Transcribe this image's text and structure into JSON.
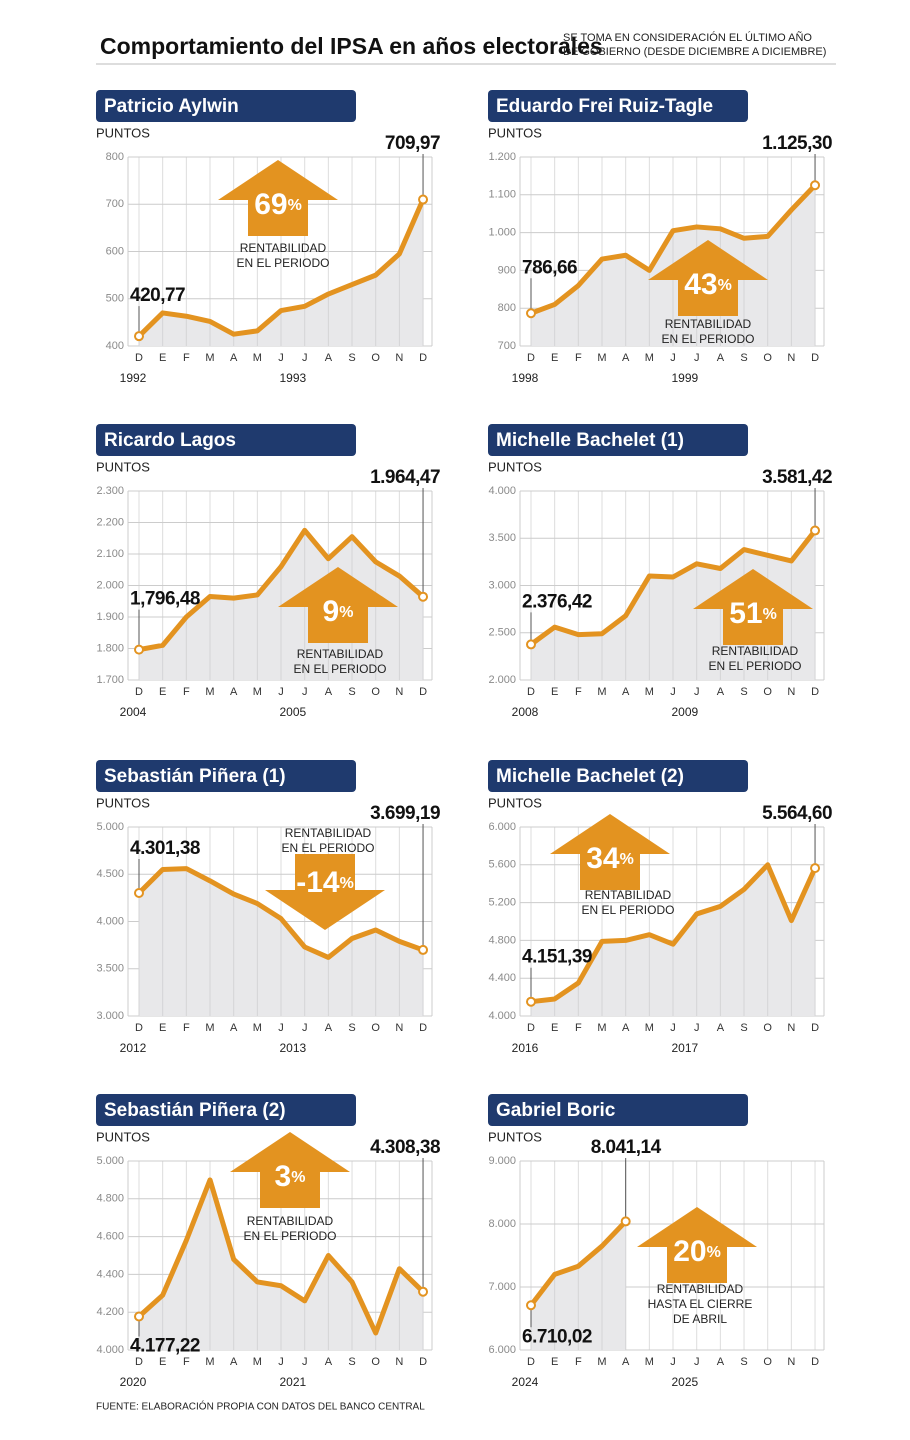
{
  "header": {
    "title": "Comportamiento del IPSA en años electorales",
    "note": [
      "SE TOMA EN CONSIDERACIÓN EL ÚLTIMO AÑO",
      "DE GOBIERNO (DESDE DICIEMBRE A DICIEMBRE)"
    ]
  },
  "chart_data": [
    {
      "type": "line",
      "title": "Patricio Aylwin",
      "ylabel": "PUNTOS",
      "categories": [
        "D",
        "E",
        "F",
        "M",
        "A",
        "M",
        "J",
        "J",
        "A",
        "S",
        "O",
        "N",
        "D"
      ],
      "years": [
        "1992",
        "1993"
      ],
      "values": [
        420.77,
        470,
        463,
        452,
        425,
        432,
        475,
        484,
        510,
        530,
        550,
        595,
        709.97
      ],
      "value_labels": [
        "420,77",
        null,
        null,
        null,
        null,
        null,
        null,
        null,
        null,
        null,
        null,
        null,
        "709,97"
      ],
      "ylim": [
        400,
        800
      ],
      "yticks": [
        400,
        500,
        600,
        700,
        800
      ],
      "return": 69,
      "return_unit": "%",
      "annotation": [
        "RENTABILIDAD",
        "EN EL PERIODO"
      ],
      "grid": true,
      "color": "#e39320"
    },
    {
      "type": "line",
      "title": "Eduardo Frei Ruiz-Tagle",
      "ylabel": "PUNTOS",
      "categories": [
        "D",
        "E",
        "F",
        "M",
        "A",
        "M",
        "J",
        "J",
        "A",
        "S",
        "O",
        "N",
        "D"
      ],
      "years": [
        "1998",
        "1999"
      ],
      "values": [
        786.66,
        810,
        860,
        930,
        940,
        900,
        1005,
        1015,
        1010,
        985,
        990,
        1060,
        1125.3
      ],
      "value_labels": [
        "786,66",
        null,
        null,
        null,
        null,
        null,
        null,
        null,
        null,
        null,
        null,
        null,
        "1.125,30"
      ],
      "ylim": [
        700,
        1200
      ],
      "yticks": [
        700,
        800,
        900,
        {
          "value": 1000,
          "label": "1.000"
        },
        {
          "value": 1100,
          "label": "1.100"
        },
        {
          "value": 1200,
          "label": "1.200"
        }
      ],
      "return": 43,
      "return_unit": "%",
      "annotation": [
        "RENTABILIDAD",
        "EN EL PERIODO"
      ],
      "grid": true,
      "color": "#e39320"
    },
    {
      "type": "line",
      "title": "Ricardo Lagos",
      "ylabel": "PUNTOS",
      "categories": [
        "D",
        "E",
        "F",
        "M",
        "A",
        "M",
        "J",
        "J",
        "A",
        "S",
        "O",
        "N",
        "D"
      ],
      "years": [
        "2004",
        "2005"
      ],
      "values": [
        1796.48,
        1810,
        1900,
        1965,
        1960,
        1970,
        2060,
        2175,
        2085,
        2155,
        2075,
        2030,
        1964.47
      ],
      "value_labels": [
        "1,796,48",
        null,
        null,
        null,
        null,
        null,
        null,
        null,
        null,
        null,
        null,
        null,
        "1.964,47"
      ],
      "ylim": [
        1700,
        2300
      ],
      "yticks": [
        {
          "value": 1700,
          "label": "1.700"
        },
        {
          "value": 1800,
          "label": "1.800"
        },
        {
          "value": 1900,
          "label": "1.900"
        },
        {
          "value": 2000,
          "label": "2.000"
        },
        {
          "value": 2100,
          "label": "2.100"
        },
        {
          "value": 2200,
          "label": "2.200"
        },
        {
          "value": 2300,
          "label": "2.300"
        }
      ],
      "return": 9,
      "return_unit": "%",
      "annotation": [
        "RENTABILIDAD",
        "EN EL PERIODO"
      ],
      "grid": true,
      "color": "#e39320"
    },
    {
      "type": "line",
      "title": "Michelle Bachelet (1)",
      "ylabel": "PUNTOS",
      "categories": [
        "D",
        "E",
        "F",
        "M",
        "A",
        "M",
        "J",
        "J",
        "A",
        "S",
        "O",
        "N",
        "D"
      ],
      "years": [
        "2008",
        "2009"
      ],
      "values": [
        2376.42,
        2560,
        2480,
        2490,
        2680,
        3100,
        3090,
        3230,
        3180,
        3380,
        3320,
        3260,
        3581.42
      ],
      "value_labels": [
        "2.376,42",
        null,
        null,
        null,
        null,
        null,
        null,
        null,
        null,
        null,
        null,
        null,
        "3.581,42"
      ],
      "ylim": [
        2000,
        4000
      ],
      "yticks": [
        {
          "value": 2000,
          "label": "2.000"
        },
        {
          "value": 2500,
          "label": "2.500"
        },
        {
          "value": 3000,
          "label": "3.000"
        },
        {
          "value": 3500,
          "label": "3.500"
        },
        {
          "value": 4000,
          "label": "4.000"
        }
      ],
      "return": 51,
      "return_unit": "%",
      "annotation": [
        "RENTABILIDAD",
        "EN EL PERIODO"
      ],
      "grid": true,
      "color": "#e39320"
    },
    {
      "type": "line",
      "title": "Sebastián Piñera (1)",
      "ylabel": "PUNTOS",
      "categories": [
        "D",
        "E",
        "F",
        "M",
        "A",
        "M",
        "J",
        "J",
        "A",
        "S",
        "O",
        "N",
        "D"
      ],
      "years": [
        "2012",
        "2013"
      ],
      "values": [
        4301.38,
        4550,
        4560,
        4430,
        4290,
        4190,
        4030,
        3730,
        3620,
        3820,
        3910,
        3790,
        3699.19
      ],
      "value_labels": [
        "4.301,38",
        null,
        null,
        null,
        null,
        null,
        null,
        null,
        null,
        null,
        null,
        null,
        "3.699,19"
      ],
      "ylim": [
        3000,
        5000
      ],
      "yticks": [
        {
          "value": 3000,
          "label": "3.000"
        },
        {
          "value": 3500,
          "label": "3.500"
        },
        {
          "value": 4000,
          "label": "4.000"
        },
        {
          "value": 4500,
          "label": "4.500"
        },
        {
          "value": 5000,
          "label": "5.000"
        }
      ],
      "return": -14,
      "return_unit": "%",
      "annotation": [
        "RENTABILIDAD",
        "EN EL PERIODO"
      ],
      "grid": true,
      "color": "#e39320"
    },
    {
      "type": "line",
      "title": "Michelle Bachelet (2)",
      "ylabel": "PUNTOS",
      "categories": [
        "D",
        "E",
        "F",
        "M",
        "A",
        "M",
        "J",
        "J",
        "A",
        "S",
        "O",
        "N",
        "D"
      ],
      "years": [
        "2016",
        "2017"
      ],
      "values": [
        4151.39,
        4180,
        4350,
        4790,
        4800,
        4860,
        4760,
        5080,
        5160,
        5340,
        5600,
        5010,
        5564.6
      ],
      "value_labels": [
        "4.151,39",
        null,
        null,
        null,
        null,
        null,
        null,
        null,
        null,
        null,
        null,
        null,
        "5.564,60"
      ],
      "ylim": [
        4000,
        6000
      ],
      "yticks": [
        {
          "value": 4000,
          "label": "4.000"
        },
        {
          "value": 4400,
          "label": "4.400"
        },
        {
          "value": 4800,
          "label": "4.800"
        },
        {
          "value": 5200,
          "label": "5.200"
        },
        {
          "value": 5600,
          "label": "5.600"
        },
        {
          "value": 6000,
          "label": "6.000"
        }
      ],
      "return": 34,
      "return_unit": "%",
      "annotation": [
        "RENTABILIDAD",
        "EN EL PERIODO"
      ],
      "grid": true,
      "color": "#e39320"
    },
    {
      "type": "line",
      "title": "Sebastián Piñera (2)",
      "ylabel": "PUNTOS",
      "categories": [
        "D",
        "E",
        "F",
        "M",
        "A",
        "M",
        "J",
        "J",
        "A",
        "S",
        "O",
        "N",
        "D"
      ],
      "years": [
        "2020",
        "2021"
      ],
      "values": [
        4177.22,
        4290,
        4580,
        4900,
        4480,
        4360,
        4340,
        4260,
        4500,
        4360,
        4090,
        4430,
        4308.38
      ],
      "value_labels": [
        "4.177,22",
        null,
        null,
        null,
        null,
        null,
        null,
        null,
        null,
        null,
        null,
        null,
        "4.308,38"
      ],
      "ylim": [
        4000,
        5000
      ],
      "yticks": [
        {
          "value": 4000,
          "label": "4.000"
        },
        {
          "value": 4200,
          "label": "4.200"
        },
        {
          "value": 4400,
          "label": "4.400"
        },
        {
          "value": 4600,
          "label": "4.600"
        },
        {
          "value": 4800,
          "label": "4.800"
        },
        {
          "value": 5000,
          "label": "5.000"
        }
      ],
      "return": 3,
      "return_unit": "%",
      "annotation": [
        "RENTABILIDAD",
        "EN EL PERIODO"
      ],
      "grid": true,
      "color": "#e39320"
    },
    {
      "type": "line",
      "title": "Gabriel Boric",
      "ylabel": "PUNTOS",
      "categories": [
        "D",
        "E",
        "F",
        "M",
        "A",
        "M",
        "J",
        "J",
        "A",
        "S",
        "O",
        "N",
        "D"
      ],
      "years": [
        "2024",
        "2025"
      ],
      "values": [
        6710.02,
        7200,
        7330,
        7650,
        8041.14,
        null,
        null,
        null,
        null,
        null,
        null,
        null,
        null
      ],
      "value_labels": [
        "6.710,02",
        null,
        null,
        null,
        "8.041,14",
        null,
        null,
        null,
        null,
        null,
        null,
        null,
        null
      ],
      "ylim": [
        6000,
        9000
      ],
      "yticks": [
        {
          "value": 6000,
          "label": "6.000"
        },
        {
          "value": 7000,
          "label": "7.000"
        },
        {
          "value": 8000,
          "label": "8.000"
        },
        {
          "value": 9000,
          "label": "9.000"
        }
      ],
      "return": 20,
      "return_unit": "%",
      "annotation": [
        "RENTABILIDAD",
        "HASTA EL CIERRE",
        "DE ABRIL"
      ],
      "grid": true,
      "color": "#e39320"
    }
  ],
  "footer": "FUENTE: ELABORACIÓN PROPIA CON DATOS DEL BANCO CENTRAL"
}
